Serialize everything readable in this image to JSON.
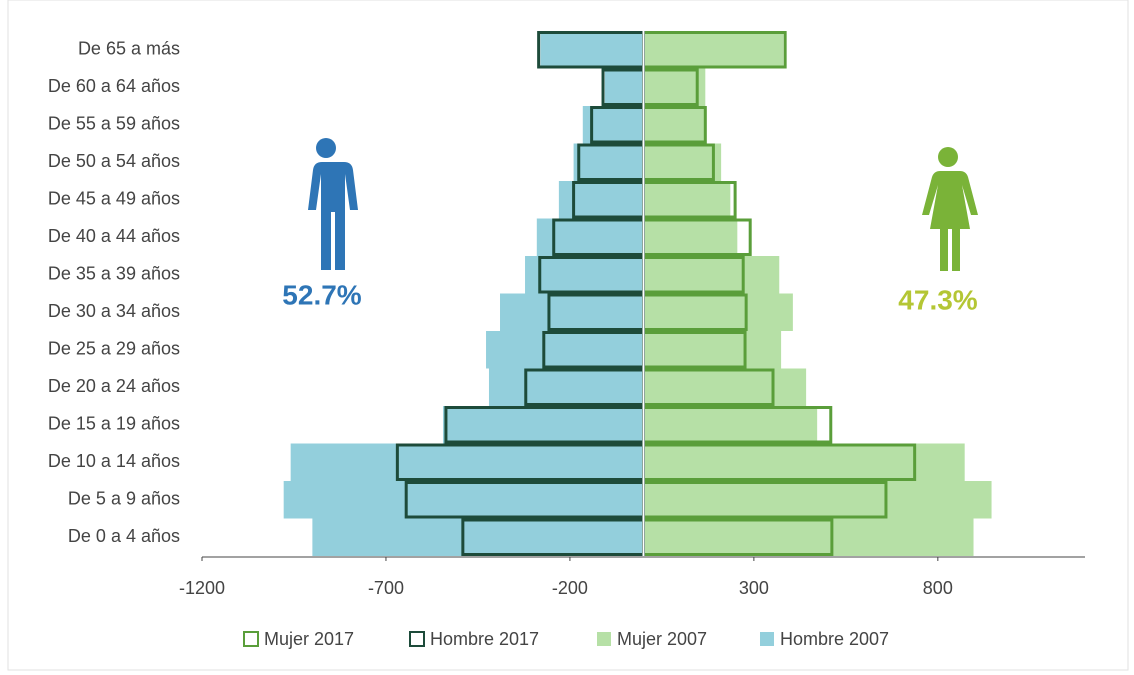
{
  "chart_data": {
    "type": "pyramid",
    "categories": [
      "De 65 a más",
      "De 60 a 64 años",
      "De 55 a 59 años",
      "De 50 a 54 años",
      "De 45 a 49 años",
      "De 40 a 44 años",
      "De 35 a 39 años",
      "De 30 a 34 años",
      "De 25 a 29 años",
      "De 20 a 24 años",
      "De 15 a 19 años",
      "De 10 a 14 años",
      "De 5 a 9 años",
      "De 0 a 4 años"
    ],
    "series": [
      {
        "name": "Mujer 2017",
        "color": "#5a9e3a",
        "style": "outline",
        "values": [
          385,
          146,
          168,
          190,
          249,
          290,
          271,
          279,
          276,
          352,
          509,
          737,
          659,
          512
        ]
      },
      {
        "name": "Hombre 2017",
        "color": "#1d4b3a",
        "style": "outline",
        "values": [
          -285,
          -110,
          -141,
          -176,
          -190,
          -244,
          -282,
          -257,
          -271,
          -320,
          -537,
          -669,
          -645,
          -491
        ]
      },
      {
        "name": "Mujer 2007",
        "color": "#b6e0a6",
        "style": "fill",
        "values": [
          380,
          168,
          165,
          211,
          236,
          255,
          369,
          406,
          374,
          442,
          472,
          873,
          946,
          897
        ]
      },
      {
        "name": "Hombre 2007",
        "color": "#93cfdc",
        "style": "fill",
        "values": [
          -280,
          -105,
          -165,
          -190,
          -230,
          -290,
          -322,
          -390,
          -428,
          -420,
          -545,
          -959,
          -978,
          -900
        ]
      }
    ],
    "xlim": [
      -1200,
      1200
    ],
    "xticks": [
      -1200,
      -700,
      -200,
      300,
      800
    ],
    "annotations": [
      {
        "text": "52.7%",
        "color": "#2e75b6"
      },
      {
        "text": "47.3%",
        "color": "#b4c634"
      }
    ]
  }
}
